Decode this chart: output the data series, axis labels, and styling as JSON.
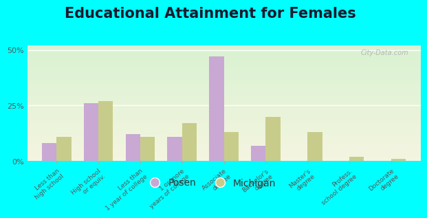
{
  "title": "Educational Attainment for Females",
  "categories": [
    "Less than\nhigh school",
    "High school\nor equiv.",
    "Less than\n1 year of college",
    "1 or more\nyears of college",
    "Associate\ndegree",
    "Bachelor's\ndegree",
    "Master's\ndegree",
    "Profess.\nschool degree",
    "Doctorate\ndegree"
  ],
  "posen_values": [
    8,
    26,
    12,
    11,
    47,
    7,
    0,
    0,
    0
  ],
  "michigan_values": [
    11,
    27,
    11,
    17,
    13,
    20,
    13,
    2,
    1
  ],
  "posen_color": "#c9a8d4",
  "michigan_color": "#c8cc8a",
  "background_color": "#00ffff",
  "ylim": [
    0,
    52
  ],
  "yticks": [
    0,
    25,
    50
  ],
  "ytick_labels": [
    "0%",
    "25%",
    "50%"
  ],
  "bar_width": 0.35,
  "legend_labels": [
    "Posen",
    "Michigan"
  ],
  "watermark": "City-Data.com",
  "title_fontsize": 15,
  "label_fontsize": 6.5,
  "tick_fontsize": 8
}
